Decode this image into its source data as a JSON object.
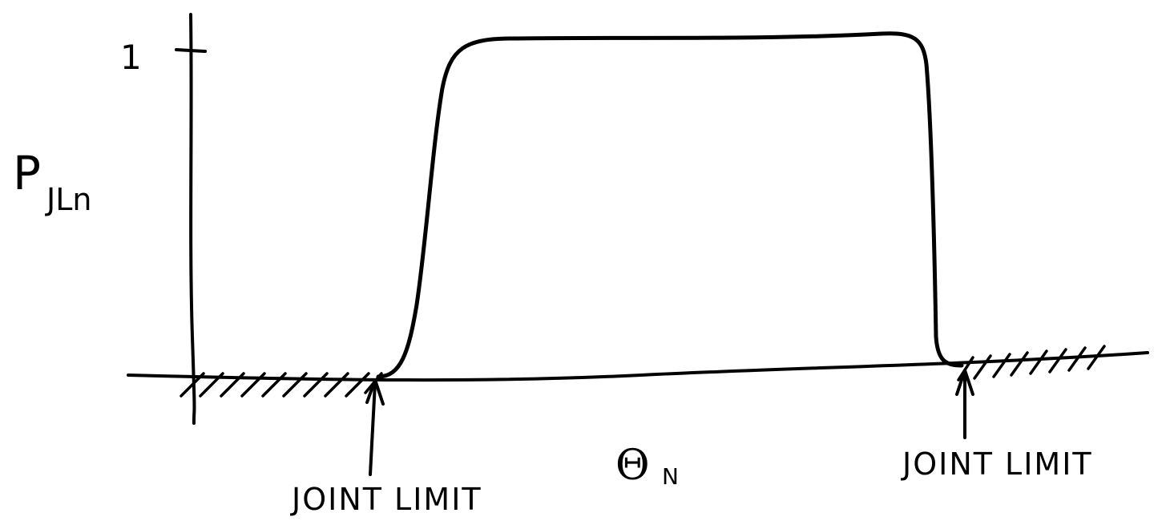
{
  "y_axis": {
    "label_main": "P",
    "label_subscript": "JLn",
    "tick_label": "1"
  },
  "x_axis": {
    "label_main": "Θ",
    "label_subscript": "N"
  },
  "annotations": {
    "left_limit": "JOINT LIMIT",
    "right_limit": "JOINT LIMIT"
  },
  "colors": {
    "ink": "#000000",
    "paper": "#ffffff"
  }
}
